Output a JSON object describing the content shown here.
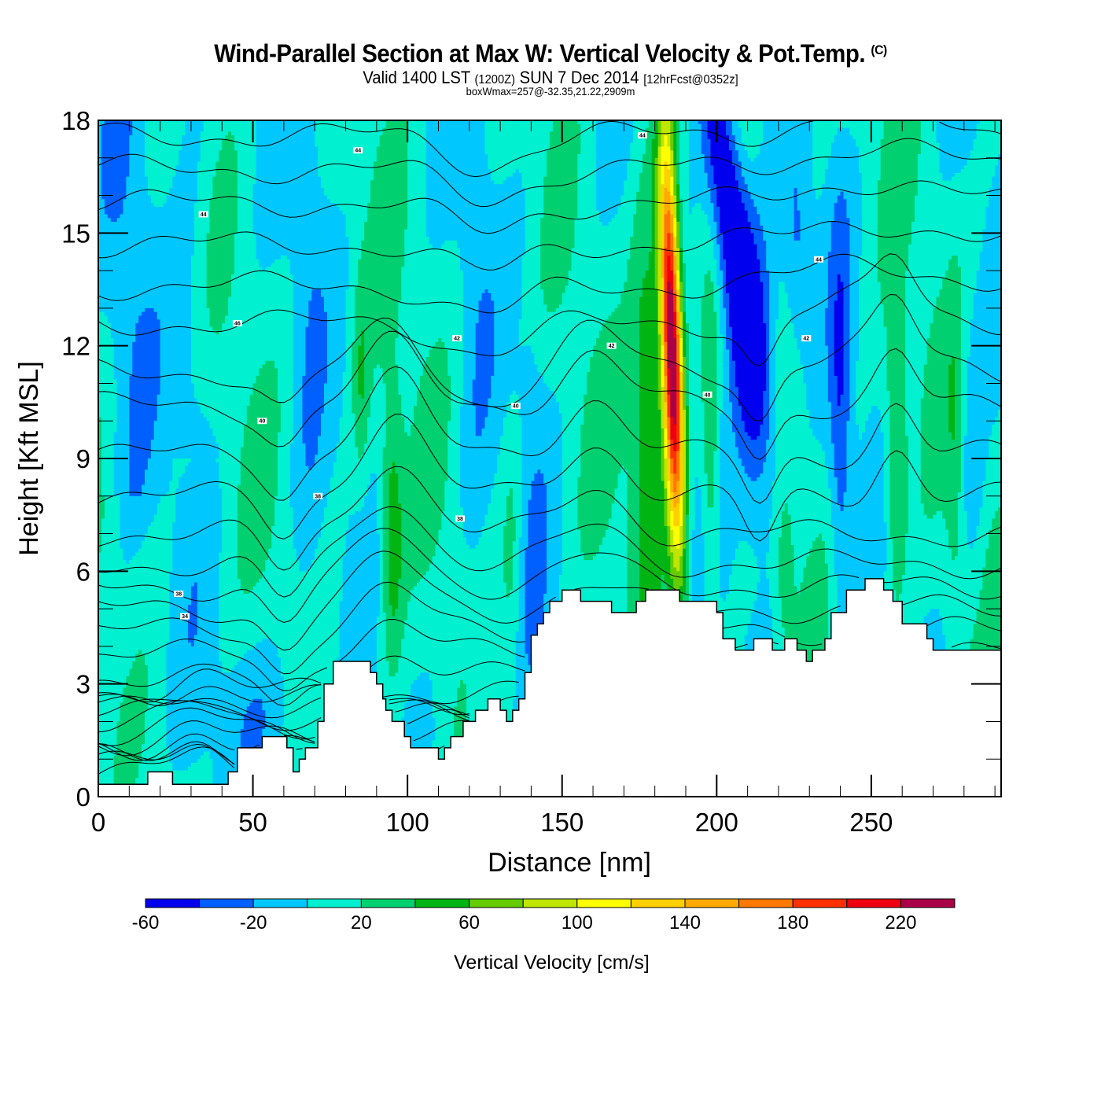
{
  "header": {
    "title": "Wind-Parallel Section at Max W: Vertical Velocity & Pot.Temp.",
    "copyright": "(C)",
    "subtitle_a": "Valid 1400 LST",
    "subtitle_b": "(1200Z)",
    "subtitle_c": "SUN 7 Dec 2014",
    "subtitle_d": "[12hrFcst@0352z]",
    "box_info": "boxWmax=257@-32.35,21.22,2909m"
  },
  "chart_data": {
    "type": "heatmap",
    "title": "Wind-Parallel Section at Max W: Vertical Velocity & Pot.Temp.",
    "xlabel": "Distance [nm]",
    "ylabel": "Height [Kft MSL]",
    "xlim": [
      0,
      292
    ],
    "ylim": [
      0,
      18
    ],
    "x_ticks": [
      0,
      50,
      100,
      150,
      200,
      250
    ],
    "x_tick_labels": [
      "0",
      "50",
      "100",
      "150",
      "200",
      "250"
    ],
    "x_minor_step": 10,
    "y_ticks": [
      0,
      3,
      6,
      9,
      12,
      15,
      18
    ],
    "y_tick_labels": [
      "0",
      "3",
      "6",
      "9",
      "12",
      "15",
      "18"
    ],
    "y_minor_step": 1,
    "grid": false,
    "colorbar": {
      "title": "Vertical Velocity [cm/s]",
      "placement": "bottom",
      "levels": [
        -60,
        -40,
        -20,
        0,
        20,
        40,
        60,
        80,
        100,
        120,
        140,
        160,
        180,
        200,
        220,
        240
      ],
      "tick_labels": [
        "-60",
        "-20",
        "20",
        "60",
        "100",
        "140",
        "180",
        "220"
      ],
      "colors": [
        "#0000ee",
        "#0060ff",
        "#00c8ff",
        "#00f0d0",
        "#00d070",
        "#00b414",
        "#64cc00",
        "#bee600",
        "#ffff00",
        "#ffd000",
        "#ffaa00",
        "#ff7800",
        "#ff3000",
        "#ee0010",
        "#aa0048"
      ]
    },
    "max_vertical_velocity_cm_s": 257,
    "features": [
      {
        "name": "main updraft core",
        "x_nm": 185,
        "z_kft": [
          6,
          18
        ],
        "peak_cm_s": 257
      },
      {
        "name": "downdraft band",
        "x_nm": 207,
        "z_kft": [
          11,
          18
        ],
        "min_cm_s": -60
      },
      {
        "name": "updraft flank",
        "x_nm": 178,
        "z_kft": [
          5,
          16
        ],
        "peak_cm_s": 60
      },
      {
        "name": "updraft",
        "x_nm": 95,
        "z_kft": [
          4,
          10
        ],
        "peak_cm_s": 60
      },
      {
        "name": "updraft",
        "x_nm": 258,
        "z_kft": [
          6,
          12
        ],
        "peak_cm_s": 60
      },
      {
        "name": "downdraft",
        "x_nm": 240,
        "z_kft": [
          5,
          15
        ],
        "min_cm_s": -40
      }
    ],
    "theta_contours": {
      "variable": "Potential Temperature",
      "units": "degrees",
      "labels_shown": [
        "44",
        "44",
        "44",
        "46",
        "42",
        "40",
        "38",
        "38",
        "34",
        "40",
        "42",
        "42",
        "42",
        "40"
      ]
    },
    "terrain_profile_kft": [
      [
        0,
        0.33
      ],
      [
        16,
        0.33
      ],
      [
        16,
        0.66
      ],
      [
        24,
        0.66
      ],
      [
        24,
        0.33
      ],
      [
        42,
        0.33
      ],
      [
        42,
        0.66
      ],
      [
        45,
        0.66
      ],
      [
        45,
        1.3
      ],
      [
        53,
        1.3
      ],
      [
        53,
        1.6
      ],
      [
        61,
        1.6
      ],
      [
        61,
        1.3
      ],
      [
        63,
        1.3
      ],
      [
        63,
        0.66
      ],
      [
        65,
        0.66
      ],
      [
        65,
        1.0
      ],
      [
        67,
        1.0
      ],
      [
        67,
        1.3
      ],
      [
        71,
        1.3
      ],
      [
        71,
        2.0
      ],
      [
        73,
        2.0
      ],
      [
        73,
        3.0
      ],
      [
        76,
        3.0
      ],
      [
        76,
        3.6
      ],
      [
        88,
        3.6
      ],
      [
        88,
        3.3
      ],
      [
        90,
        3.3
      ],
      [
        90,
        3.0
      ],
      [
        92,
        3.0
      ],
      [
        92,
        2.6
      ],
      [
        93,
        2.6
      ],
      [
        93,
        2.3
      ],
      [
        95,
        2.3
      ],
      [
        95,
        2.0
      ],
      [
        99,
        2.0
      ],
      [
        99,
        1.6
      ],
      [
        101,
        1.6
      ],
      [
        101,
        1.3
      ],
      [
        110,
        1.3
      ],
      [
        110,
        1.0
      ],
      [
        112,
        1.0
      ],
      [
        112,
        1.3
      ],
      [
        114,
        1.3
      ],
      [
        114,
        1.6
      ],
      [
        118,
        1.6
      ],
      [
        118,
        2.0
      ],
      [
        122,
        2.0
      ],
      [
        122,
        2.3
      ],
      [
        126,
        2.3
      ],
      [
        126,
        2.6
      ],
      [
        130,
        2.6
      ],
      [
        130,
        2.3
      ],
      [
        132,
        2.3
      ],
      [
        132,
        2.0
      ],
      [
        134,
        2.0
      ],
      [
        134,
        2.3
      ],
      [
        136,
        2.3
      ],
      [
        136,
        2.6
      ],
      [
        138,
        2.6
      ],
      [
        138,
        3.3
      ],
      [
        140,
        3.3
      ],
      [
        140,
        4.3
      ],
      [
        142,
        4.3
      ],
      [
        142,
        4.6
      ],
      [
        144,
        4.6
      ],
      [
        144,
        4.9
      ],
      [
        146,
        4.9
      ],
      [
        146,
        5.2
      ],
      [
        150,
        5.2
      ],
      [
        150,
        5.5
      ],
      [
        156,
        5.5
      ],
      [
        156,
        5.2
      ],
      [
        166,
        5.2
      ],
      [
        166,
        4.9
      ],
      [
        174,
        4.9
      ],
      [
        174,
        5.2
      ],
      [
        177,
        5.2
      ],
      [
        177,
        5.5
      ],
      [
        188,
        5.5
      ],
      [
        188,
        5.2
      ],
      [
        200,
        5.2
      ],
      [
        200,
        4.9
      ],
      [
        202,
        4.9
      ],
      [
        202,
        4.2
      ],
      [
        206,
        4.2
      ],
      [
        206,
        3.9
      ],
      [
        212,
        3.9
      ],
      [
        212,
        4.2
      ],
      [
        218,
        4.2
      ],
      [
        218,
        3.9
      ],
      [
        222,
        3.9
      ],
      [
        222,
        4.2
      ],
      [
        226,
        4.2
      ],
      [
        226,
        3.9
      ],
      [
        229,
        3.9
      ],
      [
        229,
        3.6
      ],
      [
        231,
        3.6
      ],
      [
        231,
        3.9
      ],
      [
        235,
        3.9
      ],
      [
        235,
        4.2
      ],
      [
        237,
        4.2
      ],
      [
        237,
        4.9
      ],
      [
        242,
        4.9
      ],
      [
        242,
        5.5
      ],
      [
        248,
        5.5
      ],
      [
        248,
        5.8
      ],
      [
        254,
        5.8
      ],
      [
        254,
        5.5
      ],
      [
        257,
        5.5
      ],
      [
        257,
        5.2
      ],
      [
        260,
        5.2
      ],
      [
        260,
        4.6
      ],
      [
        268,
        4.6
      ],
      [
        268,
        4.2
      ],
      [
        270,
        4.2
      ],
      [
        270,
        3.9
      ],
      [
        292,
        3.9
      ]
    ]
  }
}
